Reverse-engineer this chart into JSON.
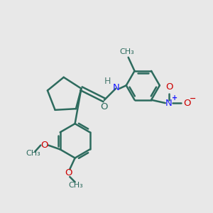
{
  "bg_color": "#e8e8e8",
  "bond_color": "#2d6b5e",
  "bond_width": 1.8,
  "nitrogen_color": "#1a1aff",
  "oxygen_color": "#cc0000",
  "text_color": "#2d6b5e",
  "H_color": "#4a7a70",
  "plus_color": "#1a1aff",
  "minus_color": "#cc0000",
  "figsize": [
    3.0,
    3.0
  ],
  "dpi": 100,
  "font_size": 9.5,
  "small_font": 8.0,
  "xlim": [
    0,
    10
  ],
  "ylim": [
    0,
    10
  ]
}
